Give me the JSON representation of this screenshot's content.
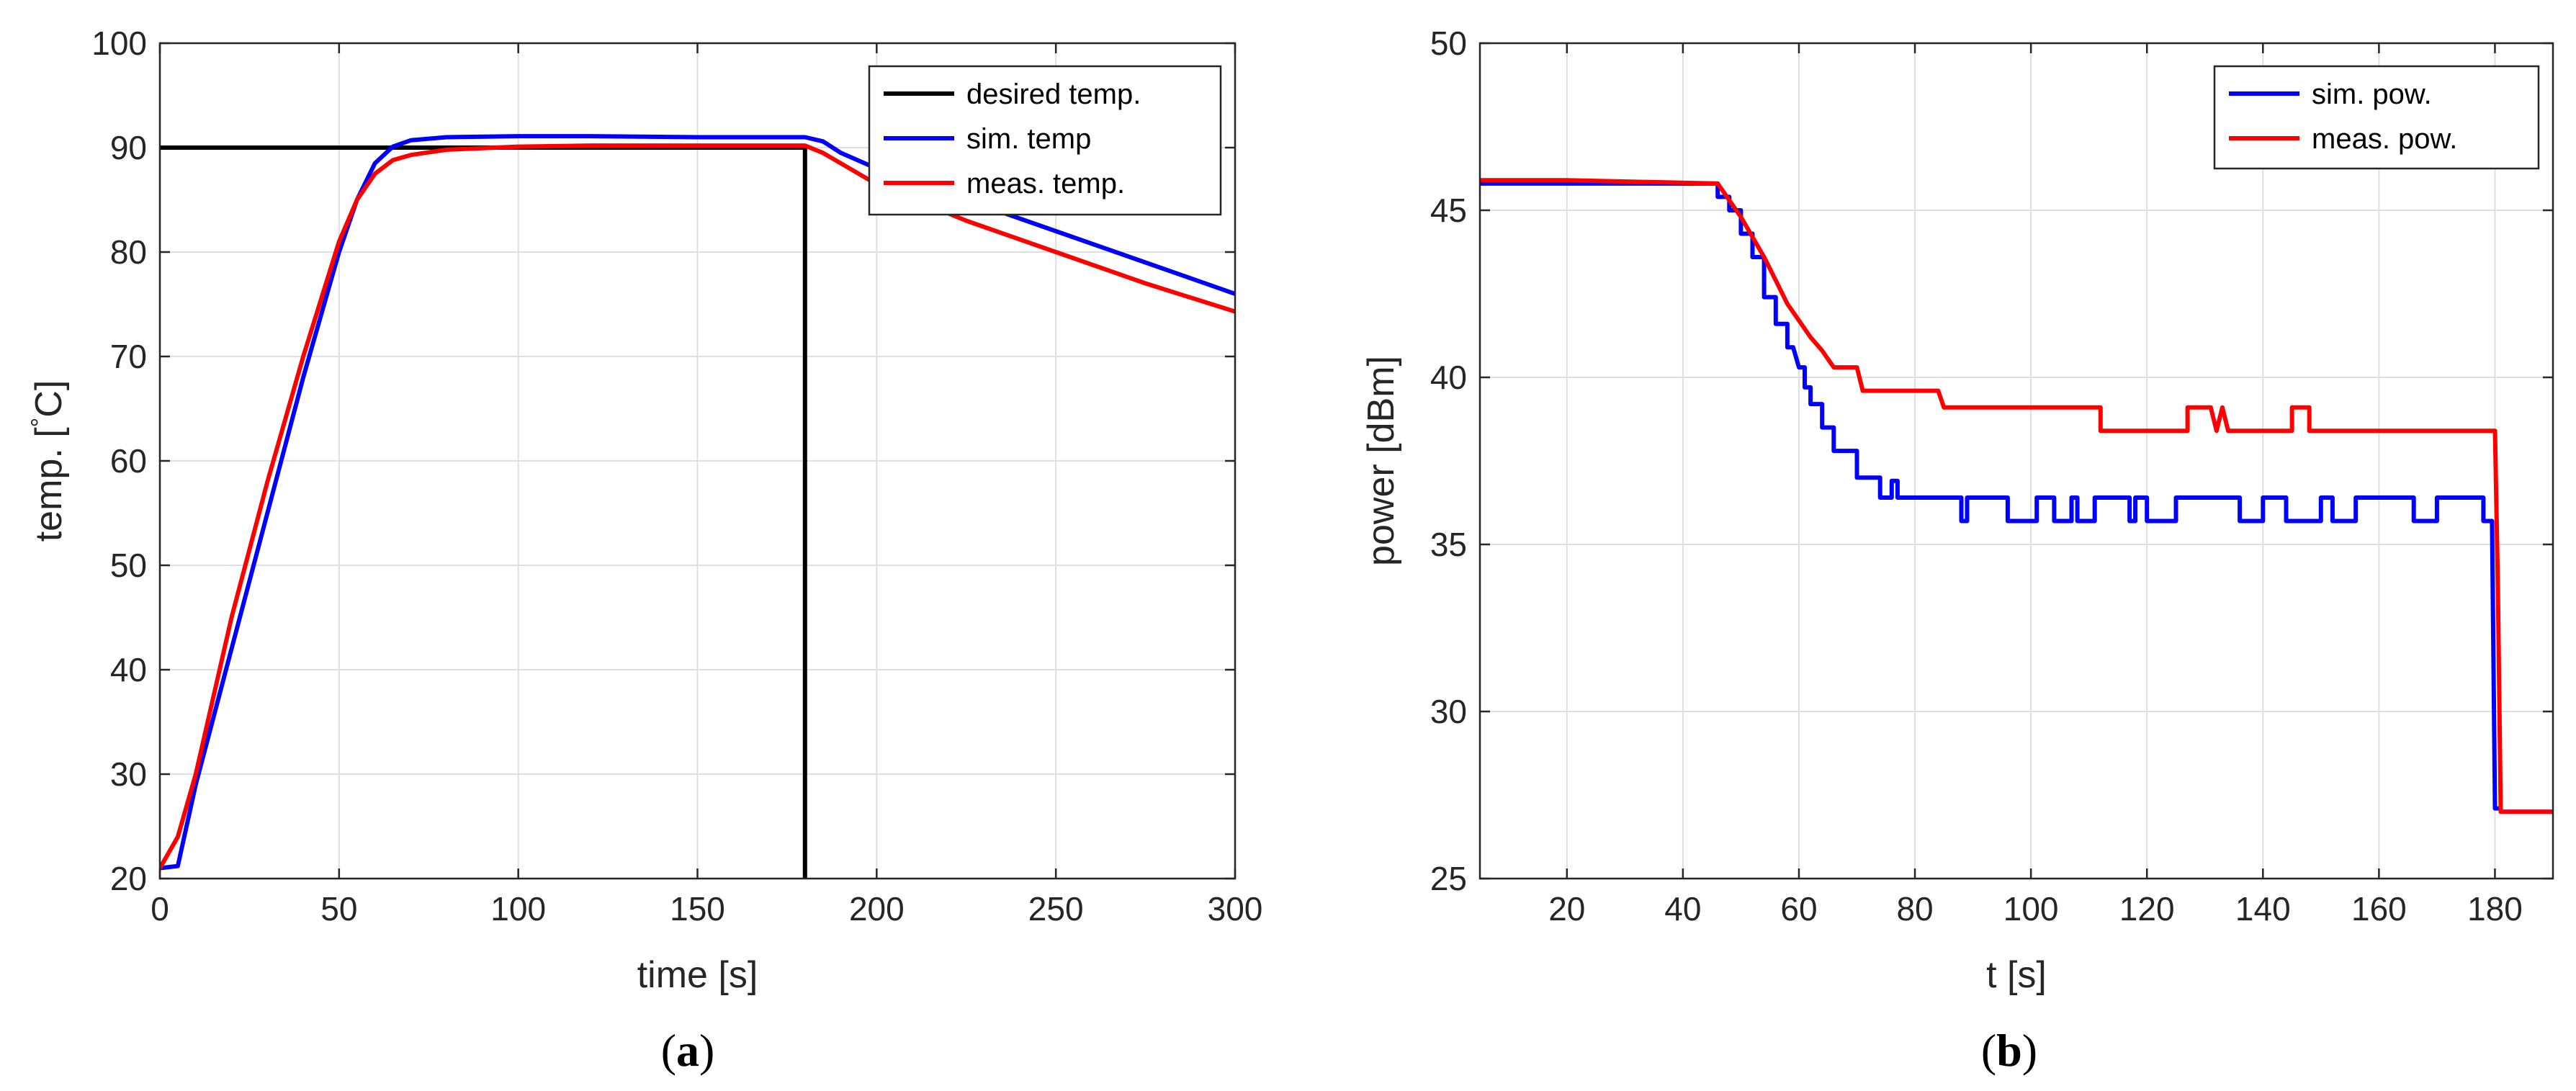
{
  "chart_data": [
    {
      "type": "line",
      "panel_label": "a",
      "xlabel": "time [s]",
      "ylabel": "temp. [°C]",
      "xlim": [
        0,
        300
      ],
      "ylim": [
        20,
        100
      ],
      "xticks": [
        0,
        50,
        100,
        150,
        200,
        250,
        300
      ],
      "yticks": [
        20,
        30,
        40,
        50,
        60,
        70,
        80,
        90,
        100
      ],
      "grid": true,
      "legend_position": "top-right",
      "series": [
        {
          "name": "desired temp.",
          "color": "#000000",
          "points": [
            [
              0,
              90
            ],
            [
              180,
              90
            ],
            [
              180,
              20
            ]
          ]
        },
        {
          "name": "sim. temp",
          "color": "#0000ff",
          "points": [
            [
              0,
              21
            ],
            [
              5,
              21.2
            ],
            [
              10,
              29
            ],
            [
              20,
              42
            ],
            [
              30,
              55
            ],
            [
              40,
              68
            ],
            [
              50,
              80
            ],
            [
              55,
              85
            ],
            [
              60,
              88.5
            ],
            [
              65,
              90.1
            ],
            [
              70,
              90.7
            ],
            [
              80,
              91
            ],
            [
              100,
              91.1
            ],
            [
              120,
              91.1
            ],
            [
              150,
              91
            ],
            [
              170,
              91
            ],
            [
              180,
              91
            ],
            [
              185,
              90.6
            ],
            [
              190,
              89.5
            ],
            [
              200,
              88
            ],
            [
              225,
              85
            ],
            [
              250,
              82
            ],
            [
              275,
              79
            ],
            [
              300,
              76
            ]
          ]
        },
        {
          "name": "meas. temp.",
          "color": "#ff0000",
          "points": [
            [
              0,
              21
            ],
            [
              5,
              24
            ],
            [
              10,
              30
            ],
            [
              20,
              45
            ],
            [
              30,
              58
            ],
            [
              40,
              70
            ],
            [
              50,
              81
            ],
            [
              55,
              85
            ],
            [
              60,
              87.5
            ],
            [
              65,
              88.8
            ],
            [
              70,
              89.3
            ],
            [
              80,
              89.8
            ],
            [
              100,
              90.1
            ],
            [
              120,
              90.2
            ],
            [
              150,
              90.2
            ],
            [
              170,
              90.2
            ],
            [
              180,
              90.2
            ],
            [
              185,
              89.5
            ],
            [
              190,
              88.5
            ],
            [
              200,
              86.5
            ],
            [
              225,
              83
            ],
            [
              250,
              80
            ],
            [
              275,
              77
            ],
            [
              300,
              74.3
            ]
          ]
        }
      ]
    },
    {
      "type": "line",
      "panel_label": "b",
      "xlabel": "t [s]",
      "ylabel": "power [dBm]",
      "xlim": [
        5,
        190
      ],
      "ylim": [
        25,
        50
      ],
      "xticks": [
        20,
        40,
        60,
        80,
        100,
        120,
        140,
        160,
        180
      ],
      "yticks": [
        25,
        30,
        35,
        40,
        45,
        50
      ],
      "grid": true,
      "legend_position": "top-right",
      "series": [
        {
          "name": "sim. pow.",
          "color": "#0000ff",
          "points": [
            [
              5,
              45.8
            ],
            [
              46,
              45.8
            ],
            [
              46,
              45.4
            ],
            [
              48,
              45.4
            ],
            [
              48,
              45.0
            ],
            [
              50,
              45.0
            ],
            [
              50,
              44.3
            ],
            [
              52,
              44.3
            ],
            [
              52,
              43.6
            ],
            [
              54,
              43.6
            ],
            [
              54,
              42.4
            ],
            [
              56,
              42.4
            ],
            [
              56,
              41.6
            ],
            [
              58,
              41.6
            ],
            [
              58,
              40.9
            ],
            [
              59,
              40.9
            ],
            [
              60,
              40.3
            ],
            [
              61,
              40.3
            ],
            [
              61,
              39.7
            ],
            [
              62,
              39.7
            ],
            [
              62,
              39.2
            ],
            [
              64,
              39.2
            ],
            [
              64,
              38.5
            ],
            [
              66,
              38.5
            ],
            [
              66,
              37.8
            ],
            [
              70,
              37.8
            ],
            [
              70,
              37.0
            ],
            [
              74,
              37.0
            ],
            [
              74,
              36.4
            ],
            [
              76,
              36.4
            ],
            [
              76,
              36.9
            ],
            [
              77,
              36.9
            ],
            [
              77,
              36.4
            ],
            [
              88,
              36.4
            ],
            [
              88,
              35.7
            ],
            [
              89,
              35.7
            ],
            [
              89,
              36.4
            ],
            [
              96,
              36.4
            ],
            [
              96,
              35.7
            ],
            [
              101,
              35.7
            ],
            [
              101,
              36.4
            ],
            [
              104,
              36.4
            ],
            [
              104,
              35.7
            ],
            [
              107,
              35.7
            ],
            [
              107,
              36.4
            ],
            [
              108,
              36.4
            ],
            [
              108,
              35.7
            ],
            [
              111,
              35.7
            ],
            [
              111,
              36.4
            ],
            [
              117,
              36.4
            ],
            [
              117,
              35.7
            ],
            [
              118,
              35.7
            ],
            [
              118,
              36.4
            ],
            [
              120,
              36.4
            ],
            [
              120,
              35.7
            ],
            [
              125,
              35.7
            ],
            [
              125,
              36.4
            ],
            [
              136,
              36.4
            ],
            [
              136,
              35.7
            ],
            [
              140,
              35.7
            ],
            [
              140,
              36.4
            ],
            [
              144,
              36.4
            ],
            [
              144,
              35.7
            ],
            [
              150,
              35.7
            ],
            [
              150,
              36.4
            ],
            [
              152,
              36.4
            ],
            [
              152,
              35.7
            ],
            [
              156,
              35.7
            ],
            [
              156,
              36.4
            ],
            [
              166,
              36.4
            ],
            [
              166,
              35.7
            ],
            [
              170,
              35.7
            ],
            [
              170,
              36.4
            ],
            [
              178,
              36.4
            ],
            [
              178,
              35.7
            ],
            [
              179.5,
              35.7
            ],
            [
              180,
              27.1
            ],
            [
              181,
              27.1
            ],
            [
              181,
              27.0
            ],
            [
              190,
              27.0
            ]
          ]
        },
        {
          "name": "meas. pow.",
          "color": "#ff0000",
          "points": [
            [
              5,
              45.9
            ],
            [
              20,
              45.9
            ],
            [
              46,
              45.8
            ],
            [
              48,
              45.3
            ],
            [
              50,
              44.8
            ],
            [
              52,
              44.2
            ],
            [
              54,
              43.6
            ],
            [
              56,
              42.9
            ],
            [
              58,
              42.2
            ],
            [
              60,
              41.7
            ],
            [
              62,
              41.2
            ],
            [
              64,
              40.8
            ],
            [
              66,
              40.3
            ],
            [
              70,
              40.3
            ],
            [
              71,
              39.6
            ],
            [
              84,
              39.6
            ],
            [
              85,
              39.1
            ],
            [
              112,
              39.1
            ],
            [
              112,
              38.4
            ],
            [
              127,
              38.4
            ],
            [
              127,
              39.1
            ],
            [
              131,
              39.1
            ],
            [
              132,
              38.4
            ],
            [
              133,
              39.1
            ],
            [
              134,
              38.4
            ],
            [
              145,
              38.4
            ],
            [
              145,
              39.1
            ],
            [
              148,
              39.1
            ],
            [
              148,
              38.4
            ],
            [
              180,
              38.4
            ],
            [
              180.5,
              33.8
            ],
            [
              181,
              27.0
            ],
            [
              190,
              27.0
            ]
          ]
        }
      ]
    }
  ],
  "panels": {
    "a": {
      "ylabel_prefix": "temp. [",
      "ylabel_degree": "°",
      "ylabel_unit": "C]",
      "caption_open": "(",
      "caption_letter": "a",
      "caption_close": ")"
    },
    "b": {
      "caption_open": "(",
      "caption_letter": "b",
      "caption_close": ")"
    }
  }
}
